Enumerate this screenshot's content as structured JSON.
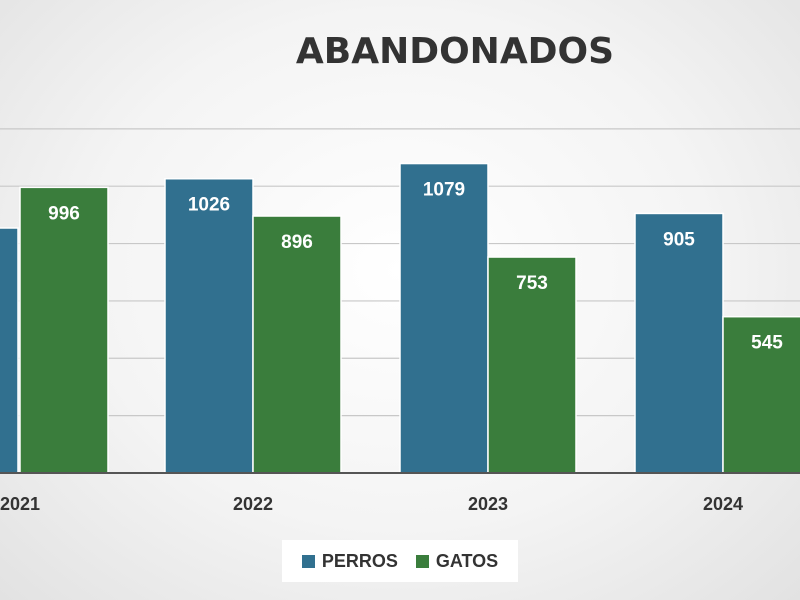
{
  "chart_data": {
    "type": "bar",
    "title": "ABANDONADOS",
    "categories": [
      "2021",
      "2022",
      "2023",
      "2024"
    ],
    "series": [
      {
        "name": "PERROS",
        "color": "#31708f",
        "values": [
          null,
          1026,
          1079,
          905
        ]
      },
      {
        "name": "GATOS",
        "color": "#3a7d3c",
        "values": [
          996,
          896,
          753,
          545
        ]
      }
    ],
    "ylim": [
      0,
      1300
    ],
    "grid": true,
    "legend": "bottom",
    "data_labels": true
  }
}
